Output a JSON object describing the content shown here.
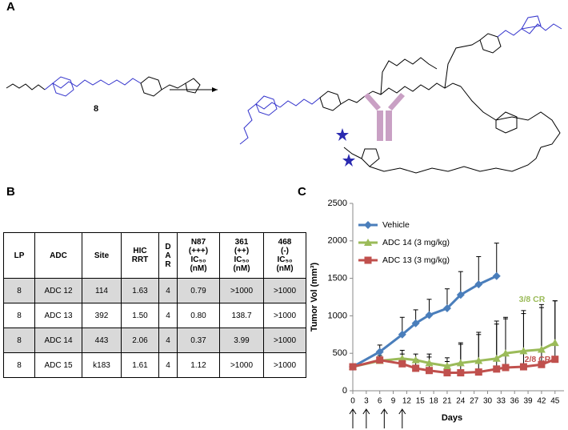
{
  "panel_labels": [
    "A",
    "B",
    "C"
  ],
  "scheme": {
    "compound_label": "8"
  },
  "table": {
    "header": [
      [
        "LP"
      ],
      [
        "ADC"
      ],
      [
        "Site"
      ],
      [
        "HIC",
        "RRT"
      ],
      [
        "D",
        "A",
        "R"
      ],
      [
        "N87",
        "(+++)",
        "IC₅₀",
        "(nM)"
      ],
      [
        "361",
        "(++)",
        "IC₅₀",
        "(nM)"
      ],
      [
        "468",
        "(-)",
        "IC₅₀",
        "(nM)"
      ]
    ],
    "rows": [
      [
        "8",
        "ADC 12",
        "114",
        "1.63",
        "4",
        "0.79",
        ">1000",
        ">1000"
      ],
      [
        "8",
        "ADC 13",
        "392",
        "1.50",
        "4",
        "0.80",
        "138.7",
        ">1000"
      ],
      [
        "8",
        "ADC 14",
        "443",
        "2.06",
        "4",
        "0.37",
        "3.99",
        ">1000"
      ],
      [
        "8",
        "ADC 15",
        "k183",
        "1.61",
        "4",
        "1.12",
        ">1000",
        ">1000"
      ]
    ]
  },
  "chart_data": {
    "type": "line",
    "xlabel": "Days",
    "ylabel": "Tumor Vol (mm³)",
    "xlim": [
      0,
      47
    ],
    "ylim": [
      0,
      2500
    ],
    "xticks": [
      0,
      3,
      6,
      9,
      12,
      15,
      18,
      21,
      24,
      27,
      30,
      33,
      36,
      39,
      42,
      45
    ],
    "yticks": [
      0,
      500,
      1000,
      1500,
      2000,
      2500
    ],
    "legend": "upper left",
    "series": [
      {
        "name": "Vehicle",
        "color": "#4a7ebb",
        "marker": "diamond",
        "x": [
          0,
          6,
          11,
          14,
          17,
          21,
          24,
          28,
          32
        ],
        "values": [
          320,
          520,
          750,
          900,
          1010,
          1100,
          1280,
          1420,
          1530
        ],
        "errors": [
          20,
          90,
          230,
          180,
          210,
          260,
          310,
          370,
          440
        ]
      },
      {
        "name": "ADC 14 (3 mg/kg)",
        "color": "#9bbb59",
        "marker": "triangle",
        "x": [
          0,
          6,
          11,
          14,
          17,
          21,
          24,
          28,
          32,
          34,
          38,
          42,
          45
        ],
        "values": [
          320,
          400,
          430,
          410,
          370,
          330,
          370,
          400,
          430,
          500,
          530,
          550,
          640
        ],
        "errors": [
          20,
          50,
          110,
          80,
          120,
          60,
          250,
          380,
          500,
          480,
          500,
          560,
          560
        ]
      },
      {
        "name": "ADC 13 (3 mg/kg)",
        "color": "#c0504d",
        "marker": "square",
        "x": [
          0,
          6,
          11,
          14,
          17,
          21,
          24,
          28,
          32,
          34,
          38,
          42,
          45
        ],
        "values": [
          320,
          410,
          360,
          300,
          270,
          240,
          240,
          250,
          290,
          310,
          320,
          350,
          420
        ],
        "errors": [
          20,
          60,
          130,
          120,
          180,
          200,
          400,
          500,
          600,
          650,
          750,
          800,
          780
        ]
      }
    ],
    "annotations": [
      {
        "text": "3/8 CR",
        "color": "#9bbb59"
      },
      {
        "text": "2/8 CR",
        "color": "#c0504d"
      }
    ],
    "dose_days": [
      0,
      3,
      7,
      11
    ]
  }
}
